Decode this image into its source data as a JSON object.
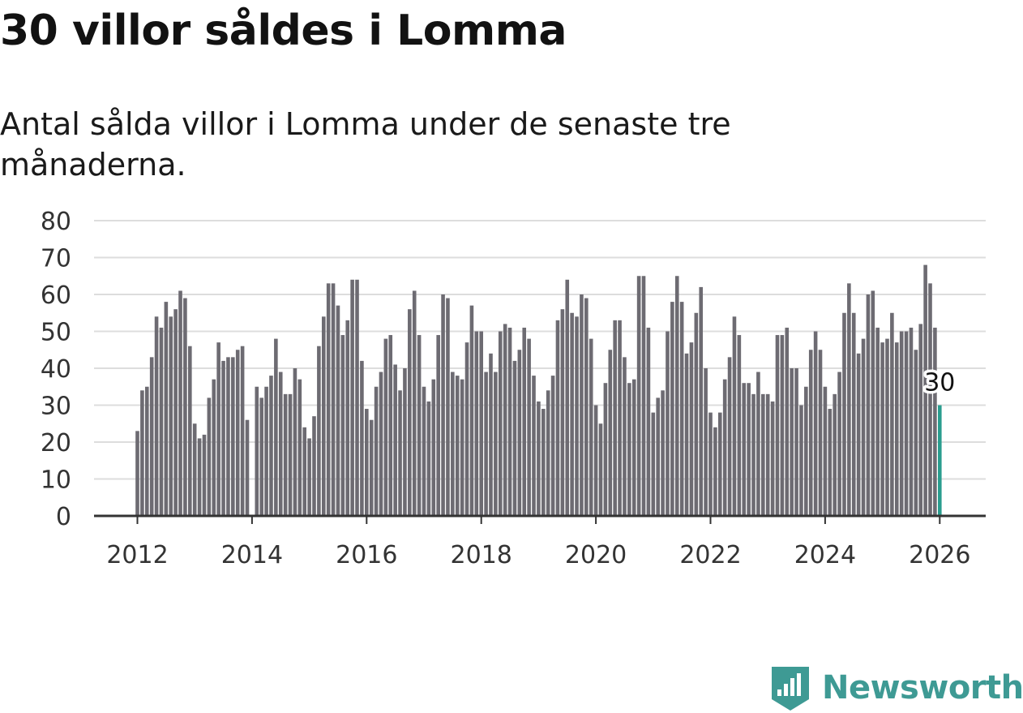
{
  "header": {
    "title": "30 villor såldes i Lomma",
    "subtitle": "Antal sålda villor i Lomma under de senaste tre månaderna."
  },
  "brand": {
    "name": "Newsworthy",
    "icon": "newsworthy-logo-icon",
    "color": "#3e9a94"
  },
  "colors": {
    "bar": "#6d6b72",
    "highlight": "#2a9d8f",
    "grid": "#dddddd",
    "axis": "#333333"
  },
  "chart_data": {
    "type": "bar",
    "title": "30 villor såldes i Lomma",
    "ylabel": "",
    "xlabel": "",
    "ylim": [
      0,
      80
    ],
    "yticks": [
      0,
      10,
      20,
      30,
      40,
      50,
      60,
      70,
      80
    ],
    "xticks": [
      "2012",
      "2014",
      "2016",
      "2018",
      "2020",
      "2022",
      "2024",
      "2026"
    ],
    "start": "2012-01",
    "frequency": "monthly",
    "grid": true,
    "highlight_label": "30",
    "values": [
      23,
      34,
      35,
      43,
      54,
      51,
      58,
      54,
      56,
      61,
      59,
      46,
      25,
      21,
      22,
      32,
      37,
      47,
      42,
      43,
      43,
      45,
      46,
      26,
      0,
      35,
      32,
      35,
      38,
      48,
      39,
      33,
      33,
      40,
      37,
      24,
      21,
      27,
      46,
      54,
      63,
      63,
      57,
      49,
      53,
      64,
      64,
      42,
      29,
      26,
      35,
      39,
      48,
      49,
      41,
      34,
      40,
      56,
      61,
      49,
      35,
      31,
      37,
      49,
      60,
      59,
      39,
      38,
      37,
      47,
      57,
      50,
      50,
      39,
      44,
      39,
      50,
      52,
      51,
      42,
      45,
      51,
      48,
      38,
      31,
      29,
      34,
      38,
      53,
      56,
      64,
      55,
      54,
      60,
      59,
      48,
      30,
      25,
      36,
      45,
      53,
      53,
      43,
      36,
      37,
      65,
      65,
      51,
      28,
      32,
      34,
      50,
      58,
      65,
      58,
      44,
      47,
      55,
      62,
      40,
      28,
      24,
      28,
      37,
      43,
      54,
      49,
      36,
      36,
      33,
      39,
      33,
      33,
      31,
      49,
      49,
      51,
      40,
      40,
      30,
      35,
      45,
      50,
      45,
      35,
      29,
      33,
      39,
      55,
      63,
      55,
      44,
      48,
      60,
      61,
      51,
      47,
      48,
      55,
      47,
      50,
      50,
      51,
      45,
      52,
      68,
      63,
      51,
      30
    ]
  }
}
